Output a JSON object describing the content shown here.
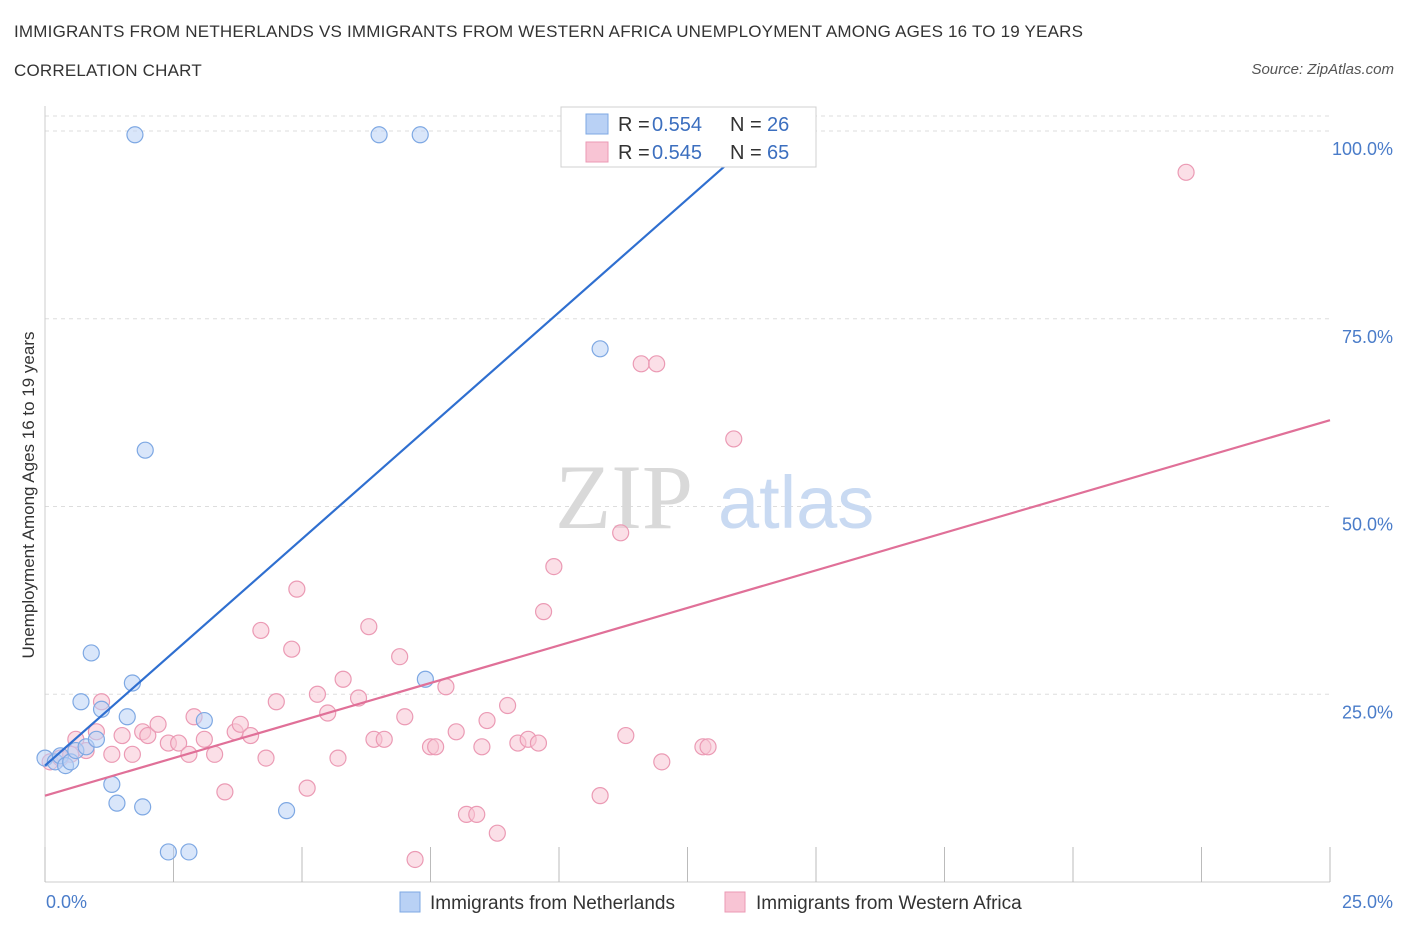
{
  "header": {
    "title": "IMMIGRANTS FROM NETHERLANDS VS IMMIGRANTS FROM WESTERN AFRICA UNEMPLOYMENT AMONG AGES 16 TO 19 YEARS",
    "subtitle": "CORRELATION CHART",
    "source": "Source: ZipAtlas.com"
  },
  "watermark": {
    "part1": "ZIP",
    "part2": "atlas"
  },
  "colors": {
    "blue_fill": "#b9d1f5",
    "blue_stroke": "#7ea8e3",
    "blue_line": "#2f6fd0",
    "pink_fill": "#f8c4d4",
    "pink_stroke": "#eb9ab4",
    "pink_line": "#e07098",
    "grid": "#dddddd"
  },
  "legend": {
    "items": [
      {
        "r_label": "R =",
        "r_value": "0.554",
        "n_label": "N =",
        "n_value": "26"
      },
      {
        "r_label": "R =",
        "r_value": "0.545",
        "n_label": "N =",
        "n_value": "65"
      }
    ]
  },
  "chart_data": {
    "type": "scatter",
    "title": "IMMIGRANTS FROM NETHERLANDS VS IMMIGRANTS FROM WESTERN AFRICA UNEMPLOYMENT AMONG AGES 16 TO 19 YEARS",
    "ylabel": "Unemployment Among Ages 16 to 19 years",
    "xlim": [
      0,
      25
    ],
    "ylim": [
      0,
      102
    ],
    "x_tick_labels": [
      "0.0%",
      "25.0%"
    ],
    "y_ticks": [
      25,
      50,
      75,
      100
    ],
    "y_tick_labels": [
      "25.0%",
      "50.0%",
      "75.0%",
      "100.0%"
    ],
    "grid": true,
    "legend_placement": "top-center",
    "series": [
      {
        "name": "Immigrants from Netherlands",
        "color": "#b9d1f5",
        "trend": {
          "x0": 0.0,
          "y0": 15.5,
          "x1": 14.0,
          "y1": 100.0
        },
        "points": [
          [
            0.0,
            16.5
          ],
          [
            0.2,
            16.0
          ],
          [
            0.3,
            16.8
          ],
          [
            0.4,
            15.5
          ],
          [
            0.5,
            16.0
          ],
          [
            0.6,
            17.5
          ],
          [
            0.8,
            18.0
          ],
          [
            0.7,
            24.0
          ],
          [
            0.9,
            30.5
          ],
          [
            1.0,
            19.0
          ],
          [
            1.1,
            23.0
          ],
          [
            1.3,
            13.0
          ],
          [
            1.4,
            10.5
          ],
          [
            1.6,
            22.0
          ],
          [
            1.7,
            26.5
          ],
          [
            1.9,
            10.0
          ],
          [
            1.95,
            57.5
          ],
          [
            1.75,
            99.5
          ],
          [
            2.4,
            4.0
          ],
          [
            2.8,
            4.0
          ],
          [
            3.1,
            21.5
          ],
          [
            4.7,
            9.5
          ],
          [
            6.5,
            99.5
          ],
          [
            7.3,
            99.5
          ],
          [
            7.4,
            27.0
          ],
          [
            10.8,
            71.0
          ]
        ]
      },
      {
        "name": "Immigrants from Western Africa",
        "color": "#f8c4d4",
        "trend": {
          "x0": 0.0,
          "y0": 11.5,
          "x1": 25.0,
          "y1": 61.5
        },
        "points": [
          [
            0.1,
            16.0
          ],
          [
            0.3,
            16.5
          ],
          [
            0.5,
            17.0
          ],
          [
            0.6,
            19.0
          ],
          [
            0.8,
            17.5
          ],
          [
            1.0,
            20.0
          ],
          [
            1.1,
            24.0
          ],
          [
            1.3,
            17.0
          ],
          [
            1.5,
            19.5
          ],
          [
            1.7,
            17.0
          ],
          [
            1.9,
            20.0
          ],
          [
            2.0,
            19.5
          ],
          [
            2.2,
            21.0
          ],
          [
            2.4,
            18.5
          ],
          [
            2.6,
            18.5
          ],
          [
            2.8,
            17.0
          ],
          [
            2.9,
            22.0
          ],
          [
            3.1,
            19.0
          ],
          [
            3.3,
            17.0
          ],
          [
            3.5,
            12.0
          ],
          [
            3.7,
            20.0
          ],
          [
            3.8,
            21.0
          ],
          [
            4.0,
            19.5
          ],
          [
            4.2,
            33.5
          ],
          [
            4.3,
            16.5
          ],
          [
            4.5,
            24.0
          ],
          [
            4.8,
            31.0
          ],
          [
            4.9,
            39.0
          ],
          [
            5.1,
            12.5
          ],
          [
            5.3,
            25.0
          ],
          [
            5.5,
            22.5
          ],
          [
            5.7,
            16.5
          ],
          [
            5.8,
            27.0
          ],
          [
            6.1,
            24.5
          ],
          [
            6.3,
            34.0
          ],
          [
            6.4,
            19.0
          ],
          [
            6.6,
            19.0
          ],
          [
            6.9,
            30.0
          ],
          [
            7.0,
            22.0
          ],
          [
            7.2,
            3.0
          ],
          [
            7.5,
            18.0
          ],
          [
            7.6,
            18.0
          ],
          [
            7.8,
            26.0
          ],
          [
            8.0,
            20.0
          ],
          [
            8.2,
            9.0
          ],
          [
            8.4,
            9.0
          ],
          [
            8.5,
            18.0
          ],
          [
            8.6,
            21.5
          ],
          [
            8.8,
            6.5
          ],
          [
            9.0,
            23.5
          ],
          [
            9.2,
            18.5
          ],
          [
            9.4,
            19.0
          ],
          [
            9.6,
            18.5
          ],
          [
            9.7,
            36.0
          ],
          [
            9.9,
            42.0
          ],
          [
            10.8,
            11.5
          ],
          [
            11.2,
            46.5
          ],
          [
            11.3,
            19.5
          ],
          [
            11.6,
            69.0
          ],
          [
            11.9,
            69.0
          ],
          [
            12.0,
            16.0
          ],
          [
            12.8,
            18.0
          ],
          [
            12.9,
            18.0
          ],
          [
            13.4,
            59.0
          ],
          [
            22.2,
            94.5
          ]
        ]
      }
    ]
  }
}
